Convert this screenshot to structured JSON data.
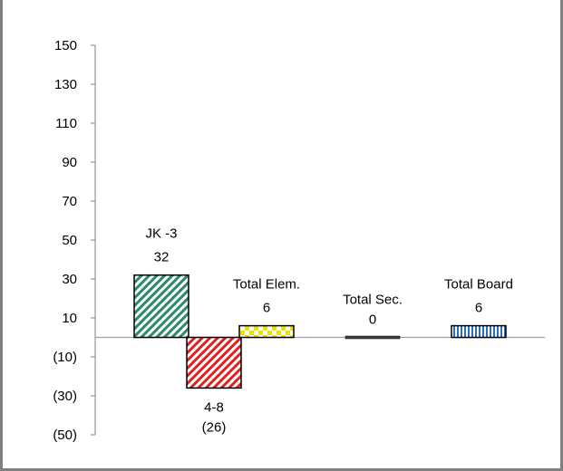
{
  "chart_data": {
    "type": "bar",
    "categories": [
      "JK -3",
      "4-8",
      "Total Elem.",
      "Total Sec.",
      "Total Board"
    ],
    "values": [
      32,
      -26,
      6,
      0,
      6
    ],
    "value_labels": [
      "32",
      "(26)",
      "6",
      "0",
      "6"
    ],
    "ylim": [
      -50,
      150
    ],
    "yticks": [
      150,
      130,
      110,
      90,
      70,
      50,
      30,
      10,
      -10,
      -30,
      -50
    ],
    "ytick_labels": [
      "150",
      "130",
      "110",
      "90",
      "70",
      "50",
      "30",
      "10",
      "(10)",
      "(30)",
      "(50)"
    ],
    "grid": false,
    "legend": "none",
    "bar_fills": [
      {
        "pattern": "diagonal-stripes",
        "color": "#2e8b6a"
      },
      {
        "pattern": "diagonal-stripes",
        "color": "#e02020"
      },
      {
        "pattern": "checker",
        "color": "#f0e000"
      },
      {
        "pattern": "solid",
        "color": "#404040"
      },
      {
        "pattern": "vertical-stripes",
        "color": "#2a6fb8"
      }
    ],
    "title": "",
    "xlabel": "",
    "ylabel": ""
  }
}
